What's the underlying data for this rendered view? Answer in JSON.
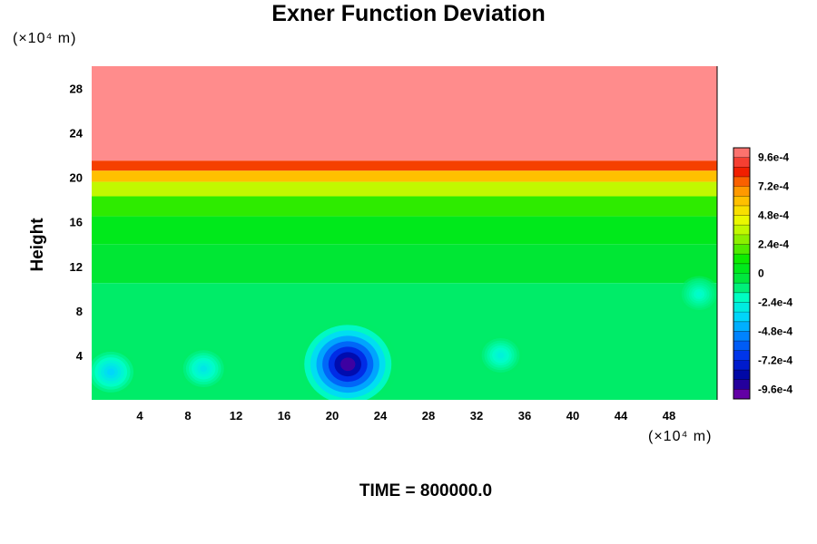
{
  "chart_data": {
    "type": "heatmap",
    "title": "Exner Function Deviation",
    "xlabel": "",
    "ylabel": "Height",
    "x_unit": "(×10⁴ m)",
    "y_unit": "(×10⁴ m)",
    "xlim": [
      0,
      52
    ],
    "ylim": [
      0,
      30
    ],
    "x_ticks": [
      4,
      8,
      12,
      16,
      20,
      24,
      28,
      32,
      36,
      40,
      44,
      48
    ],
    "y_ticks": [
      4,
      8,
      12,
      16,
      20,
      24,
      28
    ],
    "colorbar": {
      "min": -0.00104,
      "max": 0.00104,
      "tick_values": [
        0.00096,
        0.00072,
        0.00048,
        0.00024,
        0,
        -0.00024,
        -0.00048,
        -0.00072,
        -0.00096
      ],
      "tick_labels": [
        "9.6e-4",
        "7.2e-4",
        "4.8e-4",
        "2.4e-4",
        "0",
        "-2.4e-4",
        "-4.8e-4",
        "-7.2e-4",
        "-9.6e-4"
      ]
    },
    "field": {
      "layers": [
        {
          "y_from": 21.5,
          "y_to": 30,
          "value": 0.00104
        },
        {
          "y_from": 20.6,
          "y_to": 21.5,
          "value": 0.0008
        },
        {
          "y_from": 19.6,
          "y_to": 20.6,
          "value": 0.0006
        },
        {
          "y_from": 18.3,
          "y_to": 19.6,
          "value": 0.00036
        },
        {
          "y_from": 16.5,
          "y_to": 18.3,
          "value": 0.00016
        },
        {
          "y_from": 14.0,
          "y_to": 16.5,
          "value": 4e-05
        },
        {
          "y_from": 10.5,
          "y_to": 14.0,
          "value": -2e-05
        },
        {
          "y_from": 0,
          "y_to": 10.5,
          "value": -0.0001
        }
      ],
      "anomalies": [
        {
          "x": 21.3,
          "y": 3.2,
          "value": -0.00096
        },
        {
          "x": 1.6,
          "y": 2.5,
          "value": -0.00036
        },
        {
          "x": 9.3,
          "y": 2.8,
          "value": -0.0003
        },
        {
          "x": 34.0,
          "y": 4.0,
          "value": -0.00026
        },
        {
          "x": 50.5,
          "y": 9.5,
          "value": -0.00022
        }
      ]
    },
    "time_label": "TIME = 800000.0"
  }
}
